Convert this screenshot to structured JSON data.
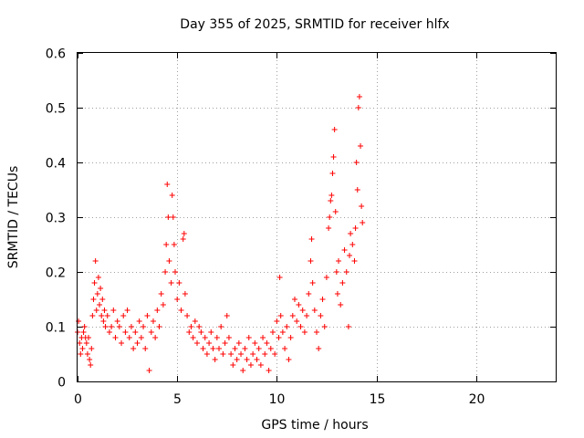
{
  "chart_data": {
    "type": "scatter",
    "title": "Day 355 of 2025, SRMTID for receiver hlfx",
    "xlabel": "GPS time / hours",
    "ylabel": "SRMTID / TECUs",
    "xlim": [
      0,
      24
    ],
    "ylim": [
      0,
      0.6
    ],
    "xticks": [
      0,
      5,
      10,
      15,
      20
    ],
    "yticks": [
      0,
      0.1,
      0.2,
      0.3,
      0.4,
      0.5,
      0.6
    ],
    "ytick_labels": [
      "0",
      "0.1",
      "0.2",
      "0.3",
      "0.4",
      "0.5",
      "0.6"
    ],
    "grid": true,
    "marker": "+",
    "color": "#ff0000",
    "series": [
      {
        "name": "hlfx",
        "points": [
          [
            0.0,
            0.09
          ],
          [
            0.05,
            0.11
          ],
          [
            0.1,
            0.07
          ],
          [
            0.15,
            0.05
          ],
          [
            0.2,
            0.08
          ],
          [
            0.25,
            0.06
          ],
          [
            0.3,
            0.09
          ],
          [
            0.35,
            0.1
          ],
          [
            0.4,
            0.08
          ],
          [
            0.45,
            0.07
          ],
          [
            0.5,
            0.05
          ],
          [
            0.55,
            0.08
          ],
          [
            0.6,
            0.04
          ],
          [
            0.65,
            0.03
          ],
          [
            0.7,
            0.06
          ],
          [
            0.75,
            0.12
          ],
          [
            0.8,
            0.15
          ],
          [
            0.85,
            0.18
          ],
          [
            0.9,
            0.22
          ],
          [
            0.95,
            0.13
          ],
          [
            1.0,
            0.16
          ],
          [
            1.05,
            0.19
          ],
          [
            1.1,
            0.14
          ],
          [
            1.15,
            0.17
          ],
          [
            1.2,
            0.12
          ],
          [
            1.25,
            0.15
          ],
          [
            1.3,
            0.11
          ],
          [
            1.35,
            0.13
          ],
          [
            1.4,
            0.1
          ],
          [
            1.5,
            0.12
          ],
          [
            1.6,
            0.09
          ],
          [
            1.7,
            0.1
          ],
          [
            1.8,
            0.13
          ],
          [
            1.9,
            0.08
          ],
          [
            2.0,
            0.11
          ],
          [
            2.1,
            0.1
          ],
          [
            2.2,
            0.07
          ],
          [
            2.3,
            0.12
          ],
          [
            2.4,
            0.09
          ],
          [
            2.5,
            0.13
          ],
          [
            2.6,
            0.08
          ],
          [
            2.7,
            0.1
          ],
          [
            2.8,
            0.06
          ],
          [
            2.9,
            0.09
          ],
          [
            3.0,
            0.07
          ],
          [
            3.1,
            0.11
          ],
          [
            3.2,
            0.08
          ],
          [
            3.3,
            0.1
          ],
          [
            3.4,
            0.06
          ],
          [
            3.5,
            0.12
          ],
          [
            3.6,
            0.02
          ],
          [
            3.7,
            0.09
          ],
          [
            3.8,
            0.11
          ],
          [
            3.9,
            0.08
          ],
          [
            4.0,
            0.13
          ],
          [
            4.1,
            0.1
          ],
          [
            4.2,
            0.16
          ],
          [
            4.3,
            0.14
          ],
          [
            4.4,
            0.2
          ],
          [
            4.45,
            0.25
          ],
          [
            4.5,
            0.36
          ],
          [
            4.55,
            0.3
          ],
          [
            4.6,
            0.22
          ],
          [
            4.7,
            0.18
          ],
          [
            4.75,
            0.34
          ],
          [
            4.8,
            0.3
          ],
          [
            4.85,
            0.25
          ],
          [
            4.9,
            0.2
          ],
          [
            5.0,
            0.15
          ],
          [
            5.1,
            0.18
          ],
          [
            5.2,
            0.13
          ],
          [
            5.3,
            0.26
          ],
          [
            5.35,
            0.27
          ],
          [
            5.4,
            0.16
          ],
          [
            5.5,
            0.12
          ],
          [
            5.6,
            0.09
          ],
          [
            5.7,
            0.1
          ],
          [
            5.8,
            0.08
          ],
          [
            5.9,
            0.11
          ],
          [
            6.0,
            0.07
          ],
          [
            6.1,
            0.1
          ],
          [
            6.2,
            0.09
          ],
          [
            6.3,
            0.06
          ],
          [
            6.4,
            0.08
          ],
          [
            6.5,
            0.05
          ],
          [
            6.6,
            0.07
          ],
          [
            6.7,
            0.09
          ],
          [
            6.8,
            0.06
          ],
          [
            6.9,
            0.04
          ],
          [
            7.0,
            0.08
          ],
          [
            7.1,
            0.06
          ],
          [
            7.2,
            0.1
          ],
          [
            7.3,
            0.05
          ],
          [
            7.4,
            0.07
          ],
          [
            7.5,
            0.12
          ],
          [
            7.6,
            0.08
          ],
          [
            7.7,
            0.05
          ],
          [
            7.8,
            0.03
          ],
          [
            7.9,
            0.06
          ],
          [
            8.0,
            0.04
          ],
          [
            8.1,
            0.07
          ],
          [
            8.2,
            0.05
          ],
          [
            8.3,
            0.02
          ],
          [
            8.4,
            0.06
          ],
          [
            8.5,
            0.04
          ],
          [
            8.6,
            0.08
          ],
          [
            8.7,
            0.03
          ],
          [
            8.8,
            0.05
          ],
          [
            8.9,
            0.07
          ],
          [
            9.0,
            0.04
          ],
          [
            9.1,
            0.06
          ],
          [
            9.2,
            0.03
          ],
          [
            9.3,
            0.08
          ],
          [
            9.4,
            0.05
          ],
          [
            9.5,
            0.07
          ],
          [
            9.6,
            0.02
          ],
          [
            9.7,
            0.06
          ],
          [
            9.8,
            0.09
          ],
          [
            9.9,
            0.05
          ],
          [
            10.0,
            0.11
          ],
          [
            10.1,
            0.08
          ],
          [
            10.15,
            0.19
          ],
          [
            10.2,
            0.12
          ],
          [
            10.3,
            0.09
          ],
          [
            10.4,
            0.06
          ],
          [
            10.5,
            0.1
          ],
          [
            10.6,
            0.04
          ],
          [
            10.7,
            0.08
          ],
          [
            10.8,
            0.12
          ],
          [
            10.9,
            0.15
          ],
          [
            11.0,
            0.11
          ],
          [
            11.1,
            0.14
          ],
          [
            11.2,
            0.1
          ],
          [
            11.3,
            0.13
          ],
          [
            11.4,
            0.09
          ],
          [
            11.5,
            0.12
          ],
          [
            11.6,
            0.16
          ],
          [
            11.7,
            0.22
          ],
          [
            11.75,
            0.26
          ],
          [
            11.8,
            0.18
          ],
          [
            11.9,
            0.13
          ],
          [
            12.0,
            0.09
          ],
          [
            12.1,
            0.06
          ],
          [
            12.2,
            0.12
          ],
          [
            12.3,
            0.15
          ],
          [
            12.4,
            0.1
          ],
          [
            12.5,
            0.19
          ],
          [
            12.6,
            0.28
          ],
          [
            12.65,
            0.3
          ],
          [
            12.7,
            0.33
          ],
          [
            12.75,
            0.34
          ],
          [
            12.8,
            0.38
          ],
          [
            12.85,
            0.41
          ],
          [
            12.9,
            0.46
          ],
          [
            12.95,
            0.31
          ],
          [
            13.0,
            0.2
          ],
          [
            13.05,
            0.16
          ],
          [
            13.1,
            0.22
          ],
          [
            13.2,
            0.14
          ],
          [
            13.3,
            0.18
          ],
          [
            13.4,
            0.24
          ],
          [
            13.5,
            0.2
          ],
          [
            13.6,
            0.1
          ],
          [
            13.65,
            0.23
          ],
          [
            13.7,
            0.27
          ],
          [
            13.8,
            0.25
          ],
          [
            13.9,
            0.22
          ],
          [
            13.95,
            0.28
          ],
          [
            14.0,
            0.4
          ],
          [
            14.05,
            0.35
          ],
          [
            14.1,
            0.5
          ],
          [
            14.15,
            0.52
          ],
          [
            14.2,
            0.43
          ],
          [
            14.25,
            0.32
          ],
          [
            14.3,
            0.29
          ]
        ]
      }
    ]
  }
}
